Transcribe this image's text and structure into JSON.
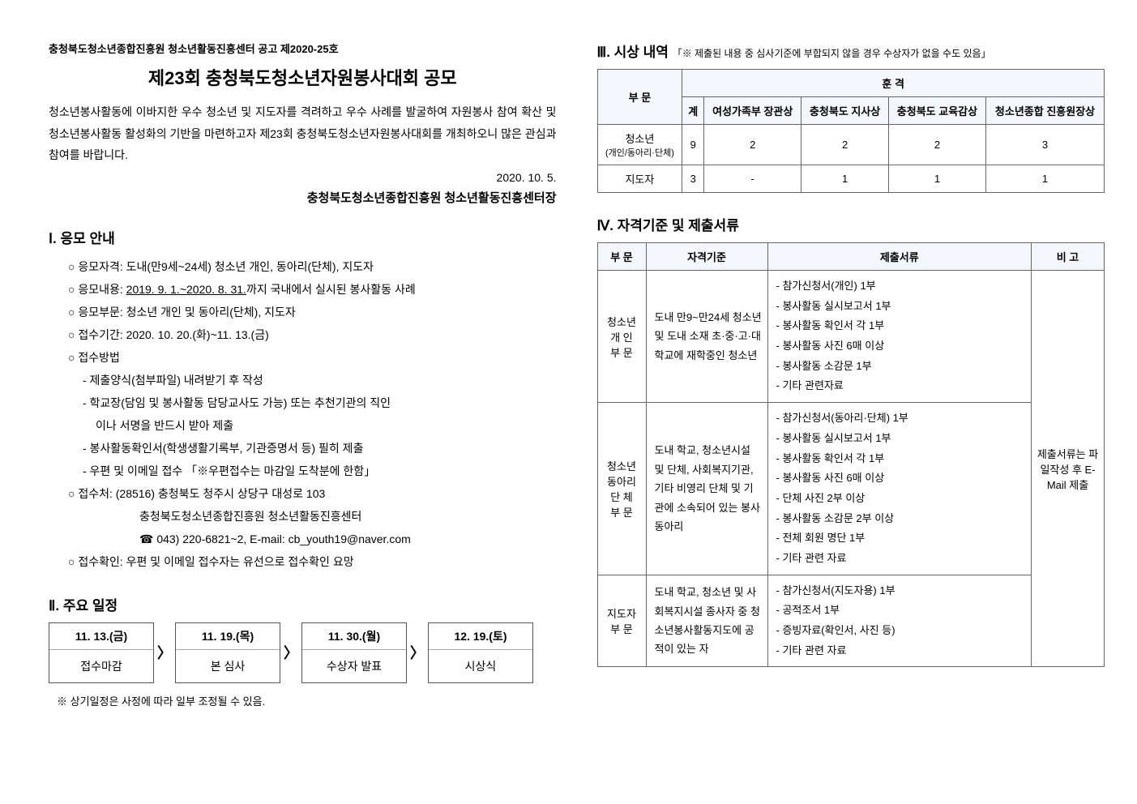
{
  "announce_number": "충청북도청소년종합진흥원 청소년활동진흥센터 공고 제2020-25호",
  "title": "제23회 충청북도청소년자원봉사대회 공모",
  "intro": "청소년봉사활동에 이바지한 우수 청소년 및 지도자를 격려하고 우수 사례를 발굴하여 자원봉사 참여 확산 및 청소년봉사활동 활성화의 기반을 마련하고자 제23회 충청북도청소년자원봉사대회를 개최하오니 많은 관심과 참여를 바랍니다.",
  "date": "2020. 10. 5.",
  "signer": "충청북도청소년종합진흥원 청소년활동진흥센터장",
  "sec1_title": "Ⅰ. 응모 안내",
  "items": {
    "eligibility": "○ 응모자격: 도내(만9세~24세) 청소년 개인, 동아리(단체), 지도자",
    "content_prefix": "○ 응모내용: ",
    "content_underline": "2019. 9. 1.~2020. 8. 31.",
    "content_suffix": "까지 국내에서 실시된 봉사활동 사례",
    "category": "○ 응모부문: 청소년 개인 및 동아리(단체), 지도자",
    "period": "○ 접수기간: 2020. 10. 20.(화)~11. 13.(금)",
    "method_head": "○ 접수방법",
    "method1": "- 제출양식(첨부파일) 내려받기 후 작성",
    "method2": "- 학교장(담임 및 봉사활동 담당교사도 가능) 또는 추천기관의 직인",
    "method2b": "이나 서명을 반드시 받아 제출",
    "method3": "- 봉사활동확인서(학생생활기록부, 기관증명서 등) 필히 제출",
    "method4": "- 우편 및 이메일 접수 「※우편접수는 마감일 도착분에 한함」",
    "addr_head": "○ 접수처: (28516) 충청북도 청주시 상당구 대성로 103",
    "addr2": "충청북도청소년종합진흥원 청소년활동진흥센터",
    "contact": "☎ 043) 220-6821~2, E-mail: cb_youth19@naver.com",
    "confirm": "○ 접수확인: 우편 및 이메일 접수자는 유선으로 접수확인 요망"
  },
  "sec2_title": "Ⅱ. 주요 일정",
  "schedule": [
    {
      "date": "11. 13.(금)",
      "label": "접수마감"
    },
    {
      "date": "11. 19.(목)",
      "label": "본 심사"
    },
    {
      "date": "11. 30.(월)",
      "label": "수상자 발표"
    },
    {
      "date": "12. 19.(토)",
      "label": "시상식"
    }
  ],
  "schedule_note": "※ 상기일정은 사정에 따라 일부 조정될 수 있음.",
  "sec3_title": "Ⅲ. 시상 내역",
  "sec3_note": "「※ 제출된 내용 중 심사기준에 부합되지 않을 경우 수상자가 없을 수도 있음」",
  "awards": {
    "headers": {
      "division": "부 문",
      "hoon": "훈 격",
      "total": "계",
      "c1": "여성가족부 장관상",
      "c2": "충청북도 지사상",
      "c3": "충청북도 교육감상",
      "c4": "청소년종합 진흥원장상"
    },
    "rows": [
      {
        "label": "청소년",
        "sublabel": "(개인/동아리·단체)",
        "total": "9",
        "v1": "2",
        "v2": "2",
        "v3": "2",
        "v4": "3"
      },
      {
        "label": "지도자",
        "sublabel": "",
        "total": "3",
        "v1": "-",
        "v2": "1",
        "v3": "1",
        "v4": "1"
      }
    ]
  },
  "sec4_title": "Ⅳ. 자격기준 및 제출서류",
  "quals": {
    "headers": {
      "div": "부 문",
      "crit": "자격기준",
      "docs": "제출서류",
      "note": "비 고"
    },
    "note_text": "제출서류는 파일작성 후 E-Mail 제출",
    "rows": [
      {
        "label": "청소년\n개 인\n부 문",
        "criteria": "도내 만9~만24세 청소년 및 도내 소재 초·중·고·대학교에 재학중인 청소년",
        "docs": [
          "참가신청서(개인) 1부",
          "봉사활동 실시보고서 1부",
          "봉사활동 확인서 각 1부",
          "봉사활동 사진 6매 이상",
          "봉사활동 소감문 1부",
          "기타 관련자료"
        ]
      },
      {
        "label": "청소년\n동아리\n단 체\n부 문",
        "criteria": "도내 학교, 청소년시설 및 단체, 사회복지기관, 기타 비영리 단체 및 기관에 소속되어 있는 봉사동아리",
        "docs": [
          "참가신청서(동아리·단체) 1부",
          "봉사활동 실시보고서 1부",
          "봉사활동 확인서 각 1부",
          "봉사활동 사진 6매 이상",
          "단체 사진 2부 이상",
          "봉사활동 소감문 2부 이상",
          "전체 회원 명단 1부",
          "기타 관련 자료"
        ]
      },
      {
        "label": "지도자\n부 문",
        "criteria": "도내 학교, 청소년 및 사회복지시설 종사자 중 청소년봉사활동지도에 공적이 있는 자",
        "docs": [
          "참가신청서(지도자용) 1부",
          "공적조서 1부",
          "증빙자료(확인서, 사진 등)",
          "기타 관련 자료"
        ]
      }
    ]
  }
}
